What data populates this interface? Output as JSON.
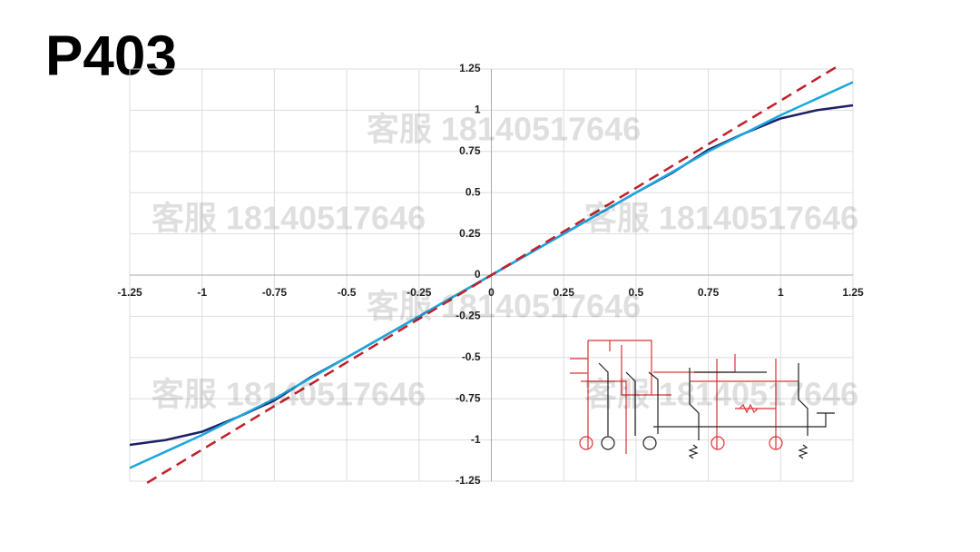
{
  "title": "P403",
  "watermark": "客服 18140517646",
  "chart_data": {
    "type": "line",
    "x": [
      -1.25,
      -1.125,
      -1,
      -0.875,
      -0.75,
      -0.625,
      -0.5,
      -0.375,
      -0.25,
      -0.125,
      0,
      0.125,
      0.25,
      0.375,
      0.5,
      0.625,
      0.75,
      0.875,
      1,
      1.125,
      1.25
    ],
    "series": [
      {
        "name": "navy",
        "color": "#1f1f66",
        "dash": false,
        "values": [
          -1.03,
          -1.0,
          -0.95,
          -0.86,
          -0.76,
          -0.62,
          -0.5,
          -0.375,
          -0.25,
          -0.125,
          0,
          0.125,
          0.25,
          0.375,
          0.5,
          0.62,
          0.76,
          0.86,
          0.95,
          1.0,
          1.03
        ]
      },
      {
        "name": "blue",
        "color": "#1aa7e0",
        "dash": false,
        "values": [
          -1.17,
          -1.07,
          -0.97,
          -0.86,
          -0.75,
          -0.625,
          -0.5,
          -0.375,
          -0.25,
          -0.125,
          0,
          0.125,
          0.25,
          0.375,
          0.5,
          0.625,
          0.75,
          0.86,
          0.97,
          1.07,
          1.17
        ]
      },
      {
        "name": "red",
        "color": "#c0202a",
        "dash": true,
        "x": [
          -1.19,
          1.2
        ],
        "values": [
          -1.26,
          1.27
        ]
      }
    ],
    "xlim": [
      -1.25,
      1.25
    ],
    "ylim": [
      -1.25,
      1.25
    ],
    "xticks": [
      -1.25,
      -1,
      -0.75,
      -0.5,
      -0.25,
      0,
      0.25,
      0.5,
      0.75,
      1,
      1.25
    ],
    "yticks": [
      -1.25,
      -1,
      -0.75,
      -0.5,
      -0.25,
      0,
      0.25,
      0.5,
      0.75,
      1,
      1.25
    ],
    "grid": true
  }
}
